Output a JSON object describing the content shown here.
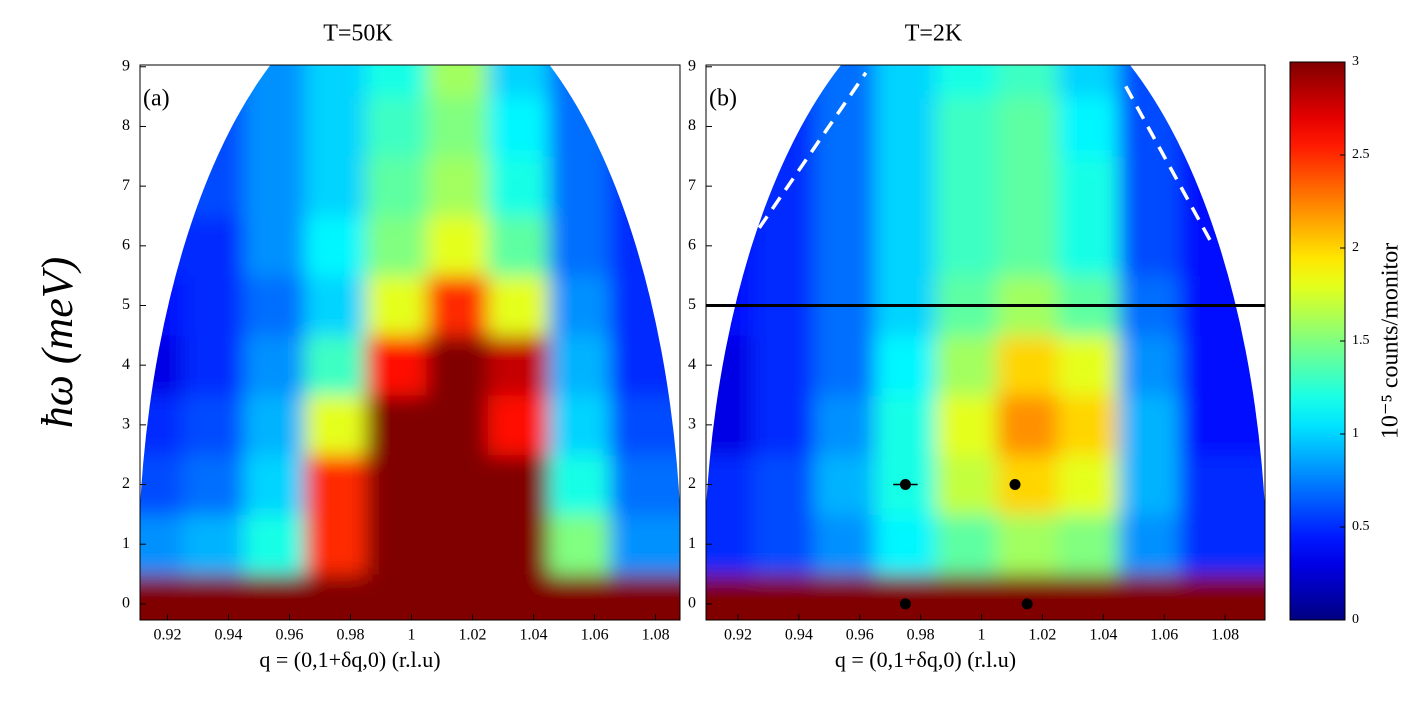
{
  "chart_data": [
    {
      "type": "heatmap",
      "title": "T=50K",
      "annotation": "(a)",
      "xlabel": "q = (0,1+δq,0) (r.l.u)",
      "ylabel": "ħω (meV)",
      "x": [
        0.915,
        0.935,
        0.955,
        0.975,
        0.995,
        1.015,
        1.035,
        1.055,
        1.075
      ],
      "y": [
        0,
        1,
        2,
        3,
        4,
        5,
        6,
        7,
        8,
        9
      ],
      "z": [
        [
          3,
          3,
          3,
          3,
          3,
          3,
          3,
          3,
          3
        ],
        [
          0.8,
          0.9,
          1.2,
          2.5,
          3,
          3,
          3,
          1.5,
          0.8
        ],
        [
          0.6,
          0.7,
          1,
          2.5,
          3,
          3,
          3,
          1.2,
          0.7
        ],
        [
          0.5,
          0.6,
          0.9,
          1.8,
          3,
          3,
          2.6,
          1,
          0.6
        ],
        [
          0.3,
          0.5,
          0.8,
          1.3,
          2.6,
          3,
          2.8,
          0.9,
          0.5
        ],
        [
          0.4,
          0.5,
          0.7,
          1,
          1.8,
          2.5,
          1.8,
          0.8,
          0.5
        ],
        [
          0.5,
          0.5,
          0.8,
          1.1,
          1.5,
          1.8,
          1.4,
          0.7,
          0.5
        ],
        [
          0.5,
          0.6,
          0.8,
          1,
          1.4,
          1.6,
          1.2,
          0.7,
          0.5
        ],
        [
          0.5,
          0.6,
          0.8,
          1,
          1.3,
          1.5,
          1.1,
          0.7,
          0.6
        ],
        [
          0.5,
          0.6,
          0.8,
          1,
          1.2,
          1.6,
          1,
          0.7,
          0.6
        ]
      ],
      "xlim": [
        0.911,
        1.088
      ],
      "ylim": [
        -0.27,
        9.03
      ],
      "xticks": [
        0.92,
        0.94,
        0.96,
        0.98,
        1,
        1.02,
        1.04,
        1.06,
        1.08
      ],
      "yticks": [
        0,
        1,
        2,
        3,
        4,
        5,
        6,
        7,
        8,
        9
      ]
    },
    {
      "type": "heatmap",
      "title": "T=2K",
      "annotation": "(b)",
      "xlabel": "q = (0,1+δq,0) (r.l.u)",
      "x": [
        0.915,
        0.935,
        0.955,
        0.975,
        0.995,
        1.015,
        1.035,
        1.055,
        1.075
      ],
      "y": [
        0,
        1,
        2,
        3,
        4,
        5,
        6,
        7,
        8,
        9
      ],
      "z": [
        [
          3,
          3,
          3,
          3,
          3,
          3,
          3,
          3,
          3
        ],
        [
          0.5,
          0.6,
          0.8,
          1.1,
          1.4,
          1.6,
          1.5,
          0.8,
          0.5
        ],
        [
          0.5,
          0.6,
          0.9,
          1.2,
          1.7,
          2,
          1.8,
          0.9,
          0.5
        ],
        [
          0.3,
          0.5,
          0.8,
          1.2,
          1.8,
          2.2,
          2,
          0.9,
          0.4
        ],
        [
          0.3,
          0.5,
          0.7,
          1.1,
          1.6,
          2,
          1.8,
          0.8,
          0.4
        ],
        [
          0.4,
          0.5,
          0.7,
          1,
          1.4,
          1.6,
          1.4,
          0.7,
          0.4
        ],
        [
          0.4,
          0.5,
          0.7,
          1,
          1.3,
          1.4,
          1.2,
          0.6,
          0.4
        ],
        [
          0.4,
          0.5,
          0.7,
          1,
          1.3,
          1.4,
          1.2,
          0.6,
          0.4
        ],
        [
          0.4,
          0.5,
          0.7,
          1,
          1.3,
          1.4,
          1.1,
          0.6,
          0.4
        ],
        [
          0.4,
          0.5,
          0.7,
          1,
          1.2,
          1.3,
          1,
          0.6,
          0.4
        ]
      ],
      "xlim": [
        0.9095,
        1.0931
      ],
      "ylim": [
        -0.27,
        9.03
      ],
      "xticks": [
        0.92,
        0.94,
        0.96,
        0.98,
        1,
        1.02,
        1.04,
        1.06,
        1.08
      ],
      "yticks": [
        0,
        1,
        2,
        3,
        4,
        5,
        6,
        7,
        8,
        9
      ],
      "hline": 5,
      "dashed_lines": [
        {
          "x": [
            0.927,
            0.962
          ],
          "y": [
            6.3,
            8.9
          ]
        },
        {
          "x": [
            1.075,
            1.046
          ],
          "y": [
            6.1,
            8.8
          ]
        }
      ],
      "points": {
        "x": [
          0.975,
          1.011,
          0.975,
          1.015
        ],
        "y": [
          2,
          2,
          0,
          0
        ],
        "xerr": [
          0.004,
          0,
          0,
          0
        ]
      }
    },
    {
      "type": "colorbar",
      "label": "10⁻⁵ counts/monitor",
      "clim": [
        0,
        3
      ],
      "ticks": [
        0,
        0.5,
        1,
        1.5,
        2,
        2.5,
        3
      ]
    }
  ]
}
